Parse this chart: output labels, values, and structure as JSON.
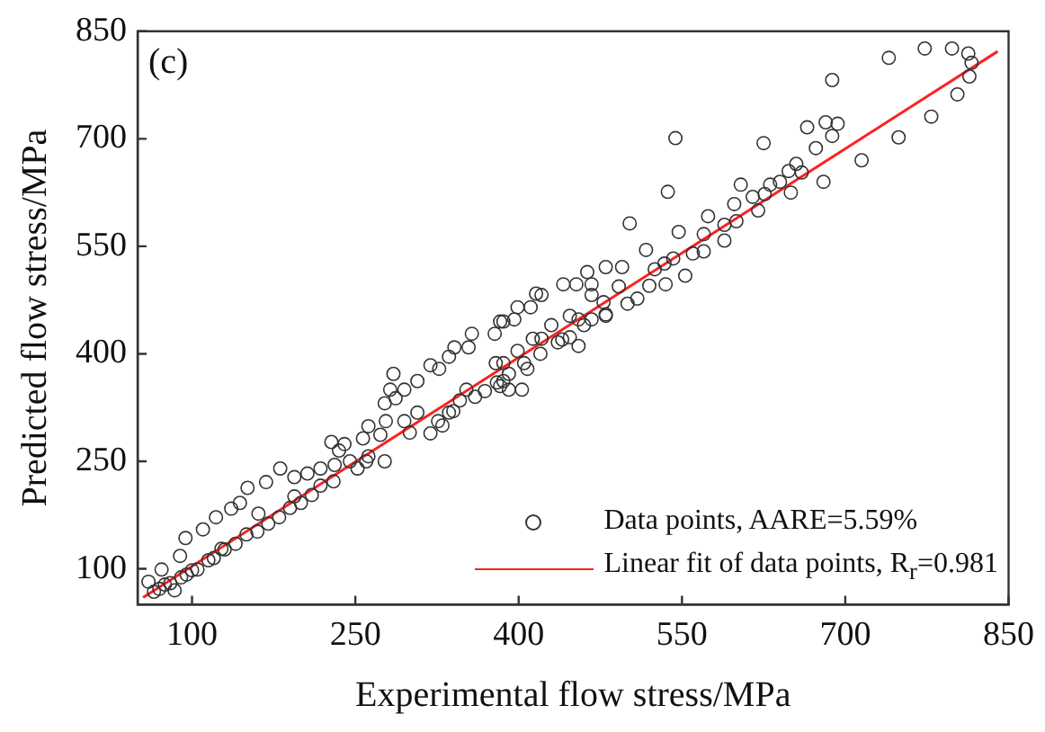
{
  "chart_data": {
    "type": "scatter",
    "xlabel": "Experimental flow stress/MPa",
    "ylabel": "Predicted flow stress/MPa",
    "annotations": [
      "(c)"
    ],
    "xlim": [
      50,
      850
    ],
    "ylim": [
      50,
      850
    ],
    "xticks": [
      100,
      250,
      400,
      550,
      700,
      850
    ],
    "yticks": [
      100,
      250,
      400,
      550,
      700,
      850
    ],
    "grid": false,
    "legend": "bottom right",
    "series": [
      {
        "name": "Data points, AARE=5.59%",
        "color": "#333333",
        "marker": "circle",
        "x": [
          740,
          773,
          798,
          813,
          816,
          814,
          803,
          779,
          749,
          715,
          688,
          680,
          665,
          682,
          693,
          688,
          673,
          544,
          625,
          537,
          502,
          547,
          655,
          660,
          648,
          640,
          631,
          626,
          615,
          604,
          598,
          589,
          589,
          574,
          570,
          570,
          553,
          535,
          542,
          534,
          517,
          525,
          509,
          492,
          495,
          480,
          463,
          467,
          453,
          441,
          467,
          478,
          480,
          467,
          455,
          447,
          430,
          447,
          455,
          436,
          421,
          413,
          416,
          421,
          411,
          399,
          396,
          386,
          399,
          405,
          408,
          403,
          391,
          379,
          383,
          383,
          378,
          357,
          354,
          341,
          336,
          327,
          319,
          336,
          346,
          352,
          369,
          386,
          391,
          307,
          295,
          285,
          282,
          287,
          277,
          278,
          273,
          277,
          295,
          307,
          319,
          326,
          262,
          257,
          240,
          228,
          245,
          231,
          218,
          206,
          194,
          181,
          168,
          144,
          151,
          136,
          122,
          110,
          94,
          89,
          72,
          60,
          84,
          105,
          127,
          161,
          194,
          218,
          252,
          235,
          262,
          386,
          300,
          340,
          360,
          330,
          380,
          420,
          440,
          460,
          480,
          500,
          520,
          560,
          600,
          620,
          650,
          70,
          80,
          90,
          100,
          115,
          130,
          150,
          170,
          190,
          210,
          230,
          260,
          65,
          75,
          95,
          120,
          140,
          160,
          180,
          200
        ],
        "values": [
          813,
          826,
          826,
          819,
          806,
          787,
          762,
          731,
          702,
          670,
          782,
          640,
          716,
          723,
          721,
          704,
          687,
          701,
          694,
          626,
          582,
          570,
          665,
          653,
          655,
          640,
          636,
          623,
          619,
          636,
          609,
          580,
          558,
          592,
          567,
          543,
          509,
          497,
          533,
          526,
          545,
          518,
          477,
          494,
          521,
          521,
          514,
          497,
          497,
          497,
          482,
          472,
          453,
          448,
          448,
          453,
          440,
          423,
          411,
          416,
          421,
          421,
          484,
          482,
          465,
          465,
          448,
          445,
          404,
          387,
          379,
          350,
          372,
          387,
          355,
          445,
          428,
          428,
          409,
          409,
          396,
          379,
          384,
          318,
          335,
          350,
          348,
          362,
          350,
          362,
          350,
          372,
          350,
          338,
          331,
          306,
          287,
          250,
          306,
          318,
          289,
          306,
          299,
          282,
          274,
          277,
          250,
          245,
          240,
          233,
          228,
          240,
          221,
          192,
          213,
          184,
          172,
          155,
          143,
          118,
          99,
          82,
          70,
          99,
          128,
          177,
          201,
          216,
          240,
          265,
          257,
          387,
          290,
          320,
          340,
          300,
          360,
          400,
          420,
          440,
          455,
          470,
          495,
          540,
          585,
          600,
          625,
          72,
          80,
          88,
          98,
          112,
          127,
          148,
          163,
          185,
          203,
          222,
          250,
          68,
          78,
          92,
          115,
          135,
          152,
          172,
          192
        ]
      },
      {
        "name": "Linear fit of data points, R$_{r}$=0.981",
        "color": "#ff2020",
        "type": "line",
        "marker": "none",
        "x": [
          55,
          840
        ],
        "values": [
          60,
          822
        ]
      }
    ]
  }
}
